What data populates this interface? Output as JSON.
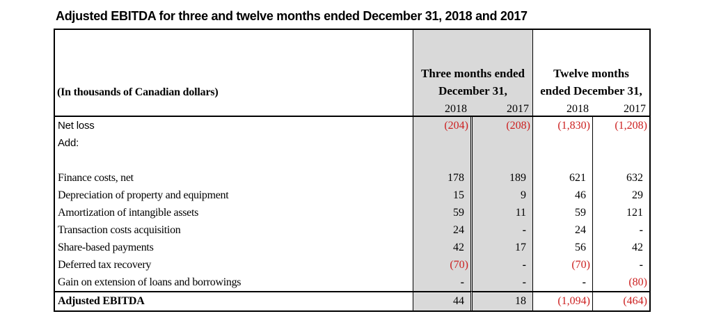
{
  "title": "Adjusted EBITDA for three and twelve months ended December 31, 2018 and 2017",
  "table": {
    "units_label": "(In thousands of Canadian dollars)",
    "column_groups": [
      {
        "label": "Three months ended December 31,",
        "shaded": true
      },
      {
        "label": "Twelve months ended December 31,",
        "shaded": false
      }
    ],
    "year_columns": [
      "2018",
      "2017",
      "2018",
      "2017"
    ],
    "rows": [
      {
        "label": "Net loss",
        "label_font": "sans",
        "values": [
          "(204)",
          "(208)",
          "(1,830)",
          "(1,208)"
        ]
      },
      {
        "label": "Add:",
        "label_font": "sans",
        "values": [
          "",
          "",
          "",
          ""
        ]
      },
      {
        "label": "",
        "values": [
          "",
          "",
          "",
          ""
        ]
      },
      {
        "label": "Finance costs, net",
        "values": [
          "178",
          "189",
          "621",
          "632"
        ]
      },
      {
        "label": "Depreciation of property and equipment",
        "values": [
          "15",
          "9",
          "46",
          "29"
        ]
      },
      {
        "label": "Amortization of intangible assets",
        "values": [
          "59",
          "11",
          "59",
          "121"
        ]
      },
      {
        "label": "Transaction costs acquisition",
        "values": [
          "24",
          "-",
          "24",
          "-"
        ]
      },
      {
        "label": "Share-based payments",
        "values": [
          "42",
          "17",
          "56",
          "42"
        ]
      },
      {
        "label": "Deferred tax recovery",
        "values": [
          "(70)",
          "-",
          "(70)",
          "-"
        ]
      },
      {
        "label": "Gain on extension of loans and borrowings",
        "values": [
          "-",
          "-",
          "-",
          "(80)"
        ]
      }
    ],
    "total_row": {
      "label": "Adjusted EBITDA",
      "values": [
        "44",
        "18",
        "(1,094)",
        "(464)"
      ]
    }
  },
  "colors": {
    "negative": "#cc1f1f",
    "shaded_column": "#d9d9d9",
    "border": "#000000"
  }
}
